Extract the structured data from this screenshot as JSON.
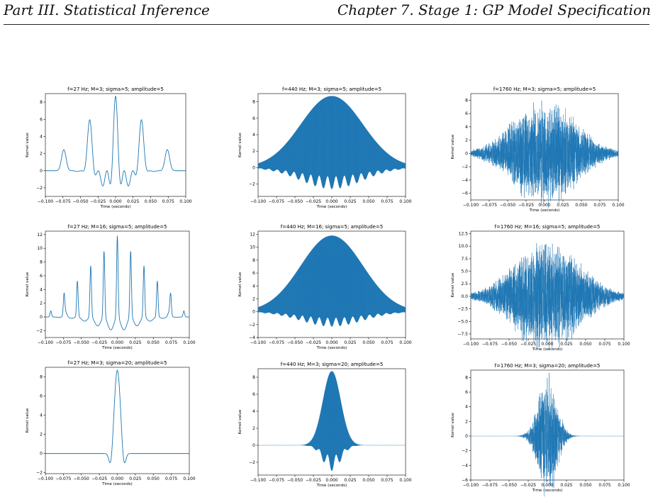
{
  "header": {
    "left": "Part III. Statistical Inference",
    "right": "Chapter 7.  Stage 1: GP Model Specification"
  },
  "colors": {
    "line": "#1f77b4",
    "axis": "#000000"
  },
  "chart_data": [
    {
      "type": "line",
      "title": "f=27 Hz; M=3; sigma=5; amplitude=5",
      "xlabel": "Time (seconds)",
      "ylabel": "Kernel value",
      "f": 27,
      "M": 3,
      "sigma": 5,
      "amplitude": 5,
      "xlim": [
        -0.1,
        0.1
      ],
      "ylim": [
        -3,
        9
      ],
      "xticks": [
        "-0.100",
        "-0.075",
        "-0.050",
        "-0.025",
        "0.000",
        "0.025",
        "0.050",
        "0.075",
        "0.100"
      ],
      "yticks": [
        {
          "v": -2,
          "label": "−2"
        },
        {
          "v": 0,
          "label": "0"
        },
        {
          "v": 2,
          "label": "2"
        },
        {
          "v": 4,
          "label": "4"
        },
        {
          "v": 6,
          "label": "6"
        },
        {
          "v": 8,
          "label": "8"
        }
      ],
      "peak": 8.7
    },
    {
      "type": "line",
      "title": "f=440 Hz; M=3; sigma=5; amplitude=5",
      "xlabel": "Time (seconds)",
      "ylabel": "Kernel value",
      "f": 440,
      "M": 3,
      "sigma": 5,
      "amplitude": 5,
      "xlim": [
        -0.1,
        0.1
      ],
      "ylim": [
        -3.5,
        9
      ],
      "xticks": [
        "-0.100",
        "-0.075",
        "-0.050",
        "-0.025",
        "0.000",
        "0.025",
        "0.050",
        "0.075",
        "0.100"
      ],
      "yticks": [
        {
          "v": -2,
          "label": "−2"
        },
        {
          "v": 0,
          "label": "0"
        },
        {
          "v": 2,
          "label": "2"
        },
        {
          "v": 4,
          "label": "4"
        },
        {
          "v": 6,
          "label": "6"
        },
        {
          "v": 8,
          "label": "8"
        }
      ],
      "peak": 8.7
    },
    {
      "type": "line",
      "title": "f=1760 Hz; M=3; sigma=5; amplitude=5",
      "xlabel": "Time (seconds)",
      "ylabel": "Kernel value",
      "f": 1760,
      "M": 3,
      "sigma": 5,
      "amplitude": 5,
      "xlim": [
        -0.1,
        0.1
      ],
      "ylim": [
        -7,
        9
      ],
      "xticks": [
        "-0.100",
        "-0.075",
        "-0.050",
        "-0.025",
        "0.000",
        "0.025",
        "0.050",
        "0.075",
        "0.100"
      ],
      "yticks": [
        {
          "v": -6,
          "label": "−6"
        },
        {
          "v": -4,
          "label": "−4"
        },
        {
          "v": -2,
          "label": "−2"
        },
        {
          "v": 0,
          "label": "0"
        },
        {
          "v": 2,
          "label": "2"
        },
        {
          "v": 4,
          "label": "4"
        },
        {
          "v": 6,
          "label": "6"
        },
        {
          "v": 8,
          "label": "8"
        }
      ],
      "peak": 8.3
    },
    {
      "type": "line",
      "title": "f=27 Hz; M=16; sigma=5; amplitude=5",
      "xlabel": "Time (seconds)",
      "ylabel": "Kernel value",
      "f": 27,
      "M": 16,
      "sigma": 5,
      "amplitude": 5,
      "xlim": [
        -0.1,
        0.1
      ],
      "ylim": [
        -3,
        12.5
      ],
      "xticks": [
        "-0.100",
        "-0.075",
        "-0.050",
        "-0.025",
        "0.000",
        "0.025",
        "0.050",
        "0.075",
        "0.100"
      ],
      "yticks": [
        {
          "v": -2,
          "label": "−2"
        },
        {
          "v": 0,
          "label": "0"
        },
        {
          "v": 2,
          "label": "2"
        },
        {
          "v": 4,
          "label": "4"
        },
        {
          "v": 6,
          "label": "6"
        },
        {
          "v": 8,
          "label": "8"
        },
        {
          "v": 10,
          "label": "10"
        },
        {
          "v": 12,
          "label": "12"
        }
      ],
      "peak": 11.8
    },
    {
      "type": "line",
      "title": "f=440 Hz; M=16; sigma=5; amplitude=5",
      "xlabel": "Time (seconds)",
      "ylabel": "Kernel value",
      "f": 440,
      "M": 16,
      "sigma": 5,
      "amplitude": 5,
      "xlim": [
        -0.1,
        0.1
      ],
      "ylim": [
        -4,
        12.5
      ],
      "xticks": [
        "-0.100",
        "-0.075",
        "-0.050",
        "-0.025",
        "0.000",
        "0.025",
        "0.050",
        "0.075",
        "0.100"
      ],
      "yticks": [
        {
          "v": -4,
          "label": "−4"
        },
        {
          "v": -2,
          "label": "−2"
        },
        {
          "v": 0,
          "label": "0"
        },
        {
          "v": 2,
          "label": "2"
        },
        {
          "v": 4,
          "label": "4"
        },
        {
          "v": 6,
          "label": "6"
        },
        {
          "v": 8,
          "label": "8"
        },
        {
          "v": 10,
          "label": "10"
        },
        {
          "v": 12,
          "label": "12"
        }
      ],
      "peak": 11.8
    },
    {
      "type": "line",
      "title": "f=1760 Hz; M=16; sigma=5; amplitude=5",
      "xlabel": "Time (seconds)",
      "ylabel": "Kernel value",
      "f": 1760,
      "M": 16,
      "sigma": 5,
      "amplitude": 5,
      "xlim": [
        -0.1,
        0.1
      ],
      "ylim": [
        -8.5,
        13
      ],
      "xticks": [
        "-0.100",
        "-0.075",
        "-0.050",
        "-0.025",
        "0.000",
        "0.025",
        "0.050",
        "0.075",
        "0.100"
      ],
      "yticks": [
        {
          "v": -7.5,
          "label": "−7.5"
        },
        {
          "v": -5,
          "label": "−5.0"
        },
        {
          "v": -2.5,
          "label": "−2.5"
        },
        {
          "v": 0,
          "label": "0.0"
        },
        {
          "v": 2.5,
          "label": "2.5"
        },
        {
          "v": 5,
          "label": "5.0"
        },
        {
          "v": 7.5,
          "label": "7.5"
        },
        {
          "v": 10,
          "label": "10.0"
        },
        {
          "v": 12.5,
          "label": "12.5"
        }
      ],
      "peak": 11.8
    },
    {
      "type": "line",
      "title": "f=27 Hz; M=3; sigma=20; amplitude=5",
      "xlabel": "Time (seconds)",
      "ylabel": "Kernel value",
      "f": 27,
      "M": 3,
      "sigma": 20,
      "amplitude": 5,
      "xlim": [
        -0.1,
        0.1
      ],
      "ylim": [
        -2.1,
        9
      ],
      "xticks": [
        "-0.100",
        "-0.075",
        "-0.050",
        "-0.025",
        "0.000",
        "0.025",
        "0.050",
        "0.075",
        "0.100"
      ],
      "yticks": [
        {
          "v": -2,
          "label": "−2"
        },
        {
          "v": 0,
          "label": "0"
        },
        {
          "v": 2,
          "label": "2"
        },
        {
          "v": 4,
          "label": "4"
        },
        {
          "v": 6,
          "label": "6"
        },
        {
          "v": 8,
          "label": "8"
        }
      ],
      "peak": 8.7
    },
    {
      "type": "line",
      "title": "f=440 Hz; M=3; sigma=20; amplitude=5",
      "xlabel": "Time (seconds)",
      "ylabel": "Kernel value",
      "f": 440,
      "M": 3,
      "sigma": 20,
      "amplitude": 5,
      "xlim": [
        -0.1,
        0.1
      ],
      "ylim": [
        -3.5,
        9
      ],
      "xticks": [
        "-0.100",
        "-0.075",
        "-0.050",
        "-0.025",
        "0.000",
        "0.025",
        "0.050",
        "0.075",
        "0.100"
      ],
      "yticks": [
        {
          "v": -2,
          "label": "−2"
        },
        {
          "v": 0,
          "label": "0"
        },
        {
          "v": 2,
          "label": "2"
        },
        {
          "v": 4,
          "label": "4"
        },
        {
          "v": 6,
          "label": "6"
        },
        {
          "v": 8,
          "label": "8"
        }
      ],
      "peak": 8.7
    },
    {
      "type": "line",
      "title": "f=1760 Hz; M=3; sigma=20; amplitude=5",
      "xlabel": "Time (seconds)",
      "ylabel": "Kernel value",
      "f": 1760,
      "M": 3,
      "sigma": 20,
      "amplitude": 5,
      "xlim": [
        -0.1,
        0.1
      ],
      "ylim": [
        -6,
        9
      ],
      "xticks": [
        "-0.100",
        "-0.075",
        "-0.050",
        "-0.025",
        "0.000",
        "0.025",
        "0.050",
        "0.075",
        "0.100"
      ],
      "yticks": [
        {
          "v": -6,
          "label": "−6"
        },
        {
          "v": -4,
          "label": "−4"
        },
        {
          "v": -2,
          "label": "−2"
        },
        {
          "v": 0,
          "label": "0"
        },
        {
          "v": 2,
          "label": "2"
        },
        {
          "v": 4,
          "label": "4"
        },
        {
          "v": 6,
          "label": "6"
        },
        {
          "v": 8,
          "label": "8"
        }
      ],
      "peak": 8.7
    }
  ]
}
